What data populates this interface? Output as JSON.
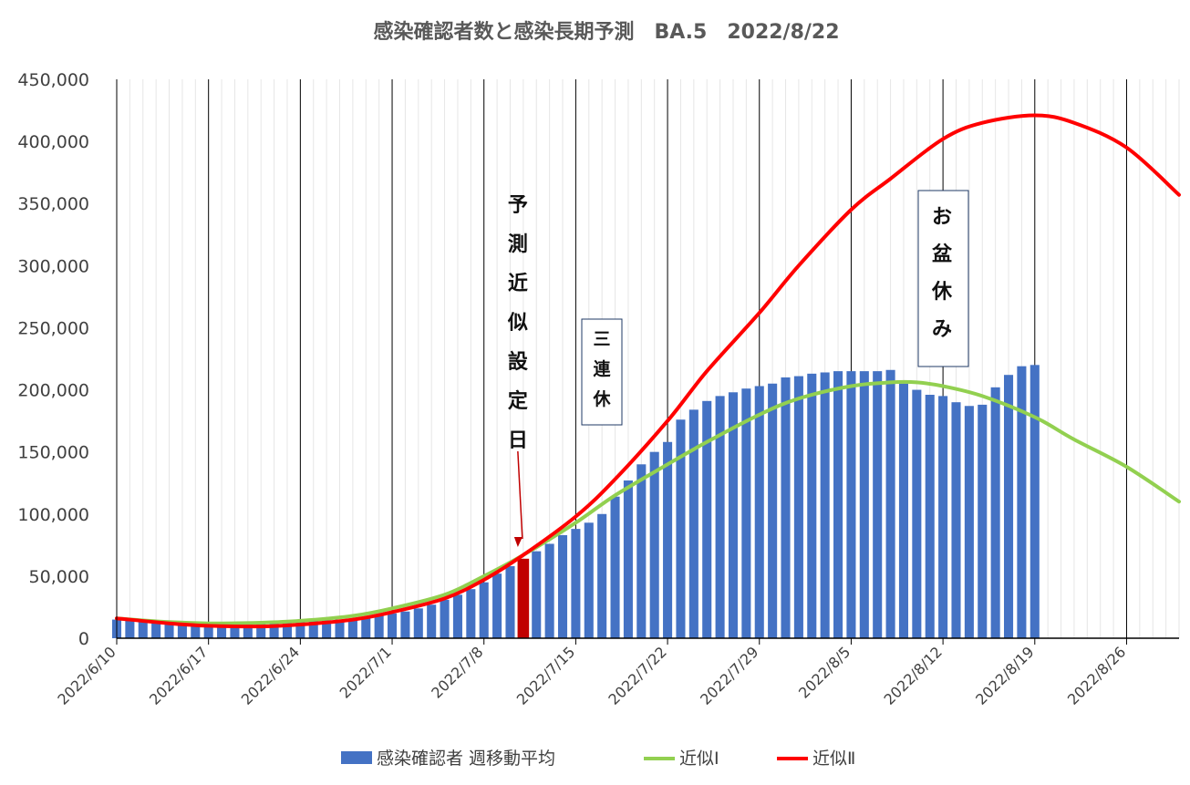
{
  "chart_data": {
    "type": "bar",
    "title": "感染確認者数と感染長期予測　BA.5　2022/8/22",
    "xlabel": "",
    "ylabel": "",
    "ylim": [
      0,
      450000
    ],
    "y_ticks": [
      0,
      50000,
      100000,
      150000,
      200000,
      250000,
      300000,
      350000,
      400000,
      450000
    ],
    "y_tick_labels": [
      "0",
      "50,000",
      "100,000",
      "150,000",
      "200,000",
      "250,000",
      "300,000",
      "350,000",
      "400,000",
      "450,000"
    ],
    "x_start": "2022-06-10",
    "x_end": "2022-08-30",
    "x_tick_labels": [
      "2022/6/10",
      "2022/6/17",
      "2022/6/24",
      "2022/7/1",
      "2022/7/8",
      "2022/7/15",
      "2022/7/22",
      "2022/7/29",
      "2022/8/5",
      "2022/8/12",
      "2022/8/19",
      "2022/8/26"
    ],
    "grid": "vertical",
    "legend_position": "bottom",
    "highlight_bar_date": "2022-07-11",
    "bar_series": {
      "name": "感染確認者 週移動平均",
      "color": "#4472C4",
      "highlight_color": "#C00000",
      "dates": [
        "2022-06-10",
        "2022-06-11",
        "2022-06-12",
        "2022-06-13",
        "2022-06-14",
        "2022-06-15",
        "2022-06-16",
        "2022-06-17",
        "2022-06-18",
        "2022-06-19",
        "2022-06-20",
        "2022-06-21",
        "2022-06-22",
        "2022-06-23",
        "2022-06-24",
        "2022-06-25",
        "2022-06-26",
        "2022-06-27",
        "2022-06-28",
        "2022-06-29",
        "2022-06-30",
        "2022-07-01",
        "2022-07-02",
        "2022-07-03",
        "2022-07-04",
        "2022-07-05",
        "2022-07-06",
        "2022-07-07",
        "2022-07-08",
        "2022-07-09",
        "2022-07-10",
        "2022-07-11",
        "2022-07-12",
        "2022-07-13",
        "2022-07-14",
        "2022-07-15",
        "2022-07-16",
        "2022-07-17",
        "2022-07-18",
        "2022-07-19",
        "2022-07-20",
        "2022-07-21",
        "2022-07-22",
        "2022-07-23",
        "2022-07-24",
        "2022-07-25",
        "2022-07-26",
        "2022-07-27",
        "2022-07-28",
        "2022-07-29",
        "2022-07-30",
        "2022-07-31",
        "2022-08-01",
        "2022-08-02",
        "2022-08-03",
        "2022-08-04",
        "2022-08-05",
        "2022-08-06",
        "2022-08-07",
        "2022-08-08",
        "2022-08-09",
        "2022-08-10",
        "2022-08-11",
        "2022-08-12",
        "2022-08-13",
        "2022-08-14",
        "2022-08-15",
        "2022-08-16",
        "2022-08-17",
        "2022-08-18",
        "2022-08-19"
      ],
      "values": [
        15000,
        14000,
        13000,
        12500,
        12000,
        12000,
        12000,
        12500,
        13000,
        13000,
        13500,
        13500,
        13500,
        14000,
        14000,
        14500,
        14500,
        15000,
        15500,
        16500,
        18000,
        20000,
        21500,
        24000,
        27000,
        31000,
        35000,
        39500,
        45000,
        52000,
        58000,
        64000,
        70000,
        76000,
        83000,
        88000,
        93000,
        100000,
        114000,
        127000,
        140000,
        150000,
        158000,
        176000,
        184000,
        191000,
        195000,
        198000,
        201000,
        203000,
        205000,
        210000,
        211000,
        213000,
        214000,
        215000,
        215000,
        215000,
        215000,
        216000,
        205000,
        200000,
        196000,
        195000,
        190000,
        187000,
        188000,
        202000,
        212000,
        219000,
        220000
      ]
    },
    "line_series": [
      {
        "name": "近似Ⅰ",
        "color": "#92D050",
        "dates": [
          "2022-06-10",
          "2022-06-14",
          "2022-06-17",
          "2022-06-21",
          "2022-06-24",
          "2022-06-28",
          "2022-07-01",
          "2022-07-05",
          "2022-07-08",
          "2022-07-11",
          "2022-07-15",
          "2022-07-18",
          "2022-07-22",
          "2022-07-25",
          "2022-07-29",
          "2022-08-01",
          "2022-08-05",
          "2022-08-08",
          "2022-08-10",
          "2022-08-12",
          "2022-08-15",
          "2022-08-19",
          "2022-08-22",
          "2022-08-26",
          "2022-08-30"
        ],
        "values": [
          16000,
          13000,
          12000,
          12500,
          14000,
          18000,
          24000,
          35000,
          50000,
          67000,
          93000,
          115000,
          140000,
          158000,
          180000,
          193000,
          203000,
          206000,
          206000,
          203000,
          195000,
          178000,
          160000,
          138000,
          110000
        ]
      },
      {
        "name": "近似Ⅱ",
        "color": "#FF0000",
        "dates": [
          "2022-06-10",
          "2022-06-14",
          "2022-06-17",
          "2022-06-21",
          "2022-06-24",
          "2022-06-28",
          "2022-07-01",
          "2022-07-05",
          "2022-07-08",
          "2022-07-11",
          "2022-07-15",
          "2022-07-18",
          "2022-07-22",
          "2022-07-25",
          "2022-07-29",
          "2022-08-01",
          "2022-08-05",
          "2022-08-08",
          "2022-08-12",
          "2022-08-15",
          "2022-08-19",
          "2022-08-22",
          "2022-08-26",
          "2022-08-30"
        ],
        "values": [
          16000,
          12000,
          10000,
          9500,
          11000,
          15000,
          21000,
          32000,
          47000,
          67000,
          98000,
          128000,
          175000,
          215000,
          262000,
          300000,
          345000,
          370000,
          402000,
          415000,
          421000,
          415000,
          395000,
          357000
        ]
      }
    ],
    "annotations": {
      "prediction_label": "予測近似設定日",
      "holiday_label": "三連休",
      "obon_label": "お盆休み"
    }
  }
}
